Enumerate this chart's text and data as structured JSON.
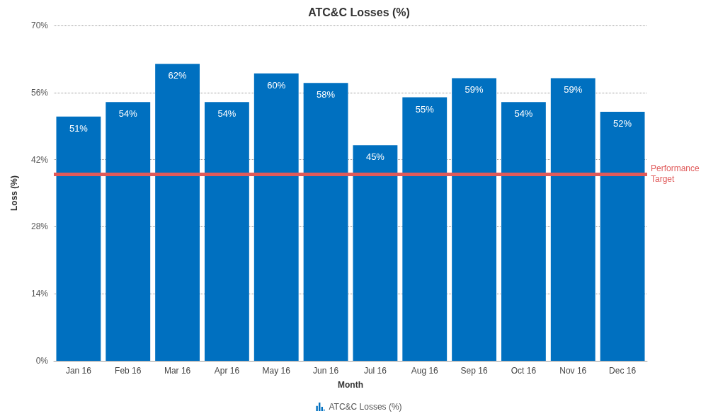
{
  "chart_data": {
    "type": "bar",
    "title": "ATC&C Losses (%)",
    "xlabel": "Month",
    "ylabel": "Loss (%)",
    "categories": [
      "Jan 16",
      "Feb 16",
      "Mar 16",
      "Apr 16",
      "May 16",
      "Jun 16",
      "Jul 16",
      "Aug 16",
      "Sep 16",
      "Oct 16",
      "Nov 16",
      "Dec 16"
    ],
    "series": [
      {
        "name": "ATC&C Losses (%)",
        "color": "#0070c0",
        "values": [
          51,
          54,
          62,
          54,
          60,
          58,
          45,
          55,
          59,
          54,
          59,
          52
        ],
        "value_labels": [
          "51%",
          "54%",
          "62%",
          "54%",
          "60%",
          "58%",
          "45%",
          "55%",
          "59%",
          "54%",
          "59%",
          "52%"
        ]
      }
    ],
    "ylim": [
      0,
      70
    ],
    "yticks": [
      {
        "value": 0,
        "label": "0%"
      },
      {
        "value": 14,
        "label": "14%"
      },
      {
        "value": 28,
        "label": "28%"
      },
      {
        "value": 42,
        "label": "42%"
      },
      {
        "value": 56,
        "label": "56%"
      },
      {
        "value": 70,
        "label": "70%"
      }
    ],
    "ref_lines": [
      {
        "axis": "y",
        "value": 39,
        "label": "Performance Target",
        "color": "#e05a5a"
      }
    ],
    "grid": "y",
    "legend": "bottom"
  }
}
